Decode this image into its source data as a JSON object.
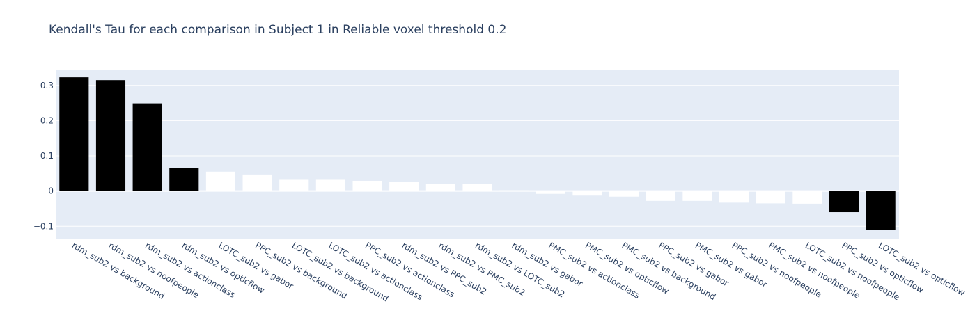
{
  "chart_data": {
    "type": "bar",
    "title": "Kendall's Tau for each comparison in Subject 1 in Reliable voxel threshold 0.2",
    "xlabel": "",
    "ylabel": "",
    "ylim": [
      -0.135,
      0.345
    ],
    "yticks": [
      -0.1,
      0,
      0.1,
      0.2,
      0.3
    ],
    "ytick_labels": [
      "−0.1",
      "0",
      "0.1",
      "0.2",
      "0.3"
    ],
    "grid": true,
    "legend": "none",
    "colors": {
      "plot_bg": "#e5ecf6",
      "grid": "#ffffff",
      "highlight": "#000000",
      "normal": "#ffffff",
      "text": "#2a3f5f"
    },
    "categories": [
      "rdm_sub2 vs background",
      "rdm_sub2 vs noofpeople",
      "rdm_sub2 vs actionclass",
      "rdm_sub2 vs opticflow",
      "LOTC_sub2 vs gabor",
      "PPC_sub2 vs background",
      "LOTC_sub2 vs background",
      "LOTC_sub2 vs actionclass",
      "PPC_sub2 vs actionclass",
      "rdm_sub2 vs PPC_sub2",
      "rdm_sub2 vs PMC_sub2",
      "rdm_sub2 vs LOTC_sub2",
      "rdm_sub2 vs gabor",
      "PMC_sub2 vs actionclass",
      "PMC_sub2 vs opticflow",
      "PMC_sub2 vs background",
      "PPC_sub2 vs gabor",
      "PMC_sub2 vs gabor",
      "PPC_sub2 vs noofpeople",
      "PMC_sub2 vs noofpeople",
      "LOTC_sub2 vs noofpeople",
      "PPC_sub2 vs opticflow",
      "LOTC_sub2 vs opticflow"
    ],
    "values": [
      0.323,
      0.315,
      0.249,
      0.066,
      0.055,
      0.047,
      0.032,
      0.032,
      0.029,
      0.025,
      0.02,
      0.02,
      0.002,
      -0.008,
      -0.013,
      -0.016,
      -0.028,
      -0.028,
      -0.033,
      -0.035,
      -0.036,
      -0.06,
      -0.11
    ],
    "highlighted": [
      true,
      true,
      true,
      true,
      false,
      false,
      false,
      false,
      false,
      false,
      false,
      false,
      false,
      false,
      false,
      false,
      false,
      false,
      false,
      false,
      false,
      true,
      true
    ]
  }
}
